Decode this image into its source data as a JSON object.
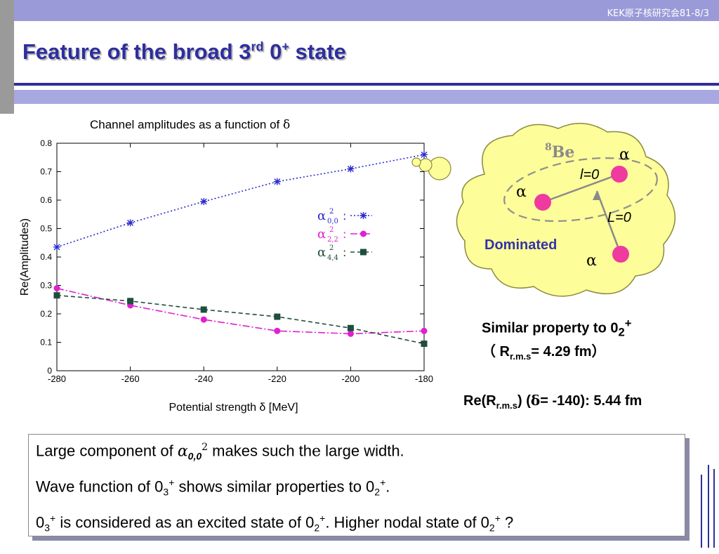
{
  "header": {
    "label": "KEK原子核研究会81-8/3"
  },
  "title": {
    "text": "Feature of the broad 3",
    "sup": "rd",
    "text2": " 0",
    "sup2": "+",
    "text3": " state"
  },
  "chart_caption": {
    "text": "Channel amplitudes as a function of ",
    "symbol": "δ"
  },
  "chart_data": {
    "type": "line",
    "xlabel": "Potential strength  δ  [MeV]",
    "ylabel": "Re(Amplitudes)",
    "xlim": [
      -280,
      -180
    ],
    "ylim": [
      0,
      0.8
    ],
    "xticks": [
      "-280",
      "-260",
      "-240",
      "-220",
      "-200",
      "-180"
    ],
    "yticks": [
      "0",
      "0.1",
      "0.2",
      "0.3",
      "0.4",
      "0.5",
      "0.6",
      "0.7",
      "0.8"
    ],
    "x": [
      -280,
      -260,
      -240,
      -220,
      -200,
      -180
    ],
    "series": [
      {
        "name": "α0,0 2",
        "legend_base": "α",
        "legend_sub": "0,0",
        "legend_sup": "2",
        "color": "#2a2ad0",
        "marker": "star",
        "dash": "2,3",
        "values": [
          0.435,
          0.52,
          0.595,
          0.665,
          0.71,
          0.76
        ]
      },
      {
        "name": "α2,2 2",
        "legend_base": "α",
        "legend_sub": "2,2",
        "legend_sup": "2",
        "color": "#e020d0",
        "marker": "circle",
        "dash": "10,3,2,3",
        "values": [
          0.29,
          0.23,
          0.18,
          0.14,
          0.13,
          0.14
        ]
      },
      {
        "name": "α4,4 2",
        "legend_base": "α",
        "legend_sub": "4,4",
        "legend_sup": "2",
        "color": "#1f4e3d",
        "marker": "square",
        "dash": "6,4",
        "values": [
          0.265,
          0.245,
          0.215,
          0.19,
          0.15,
          0.095
        ]
      }
    ],
    "legend": "right-middle"
  },
  "cloud": {
    "be_sup": "8",
    "be_text": "Be",
    "alpha1": "α",
    "alpha2": "α",
    "alpha3": "α",
    "l_label": "l=0",
    "L_label": "L=0",
    "dominated": "Dominated",
    "cloud_color": "#fdfd9a",
    "particle_color": "#ef3aa0"
  },
  "similar": {
    "line1": "Similar property to 0",
    "sub1": "2",
    "sup1": "+",
    "line2_open": "（ R",
    "line2_sub": "r.m.s",
    "line2_rest": "= 4.29 fm）"
  },
  "rerms": {
    "pre": "Re(R",
    "sub": "r.m.s",
    "mid": ") (",
    "delta": "δ",
    "rest": "= -140): 5.44 fm"
  },
  "summary": {
    "l1_a": "Large component of ",
    "l1_alpha": "α",
    "l1_sub": "0,0",
    "l1_sup": "2",
    "l1_b": "  makes such th",
    "l1_e": "e",
    "l1_c": " large width.",
    "l2_a": "Wave function of 0",
    "l2_sub1": "3",
    "l2_sup1": "+",
    "l2_b": " shows similar properties to 0",
    "l2_sub2": "2",
    "l2_sup2": "+",
    "l2_c": ".",
    "l3_a": "0",
    "l3_sub1": "3",
    "l3_sup1": "+",
    "l3_b": " is considered as an excited state of 0",
    "l3_sub2": "2",
    "l3_sup2": "+",
    "l3_c": ".   Higher nodal state of 0",
    "l3_sub3": "2",
    "l3_sup3": "+",
    "l3_d": " ?"
  }
}
